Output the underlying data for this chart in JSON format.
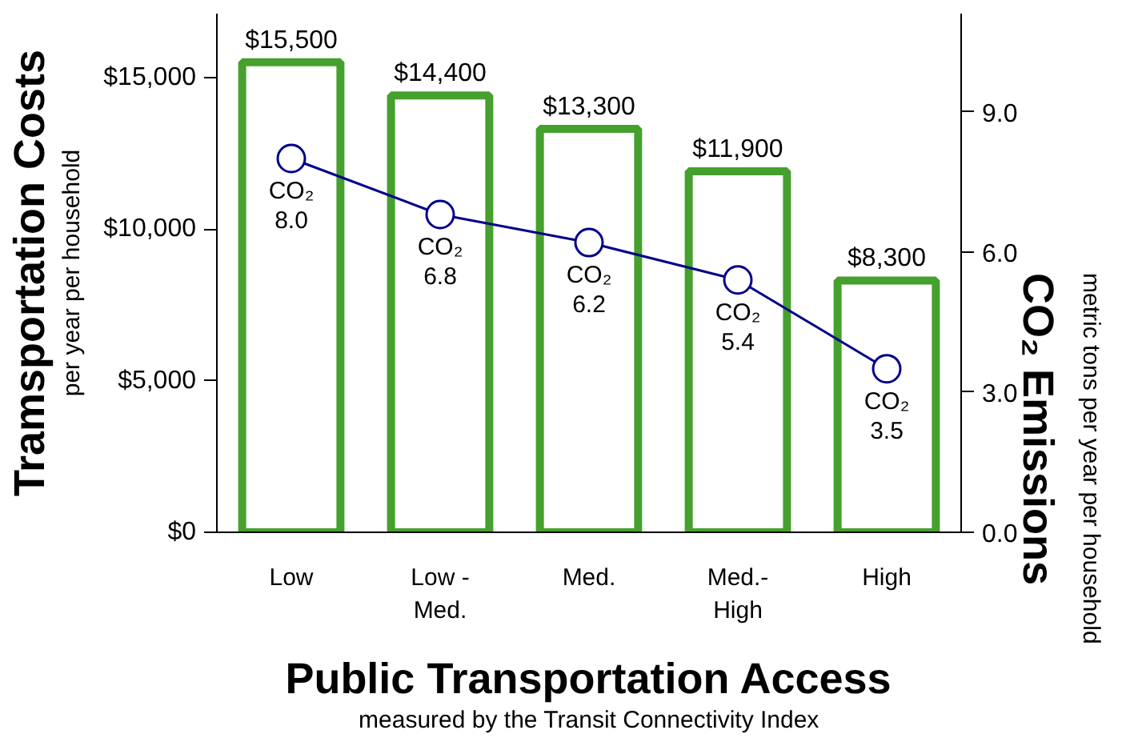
{
  "chart_data": {
    "type": "bar",
    "xlabel": "Public Transportation Access",
    "ylabel": "Tramsportation Costs",
    "y2label": "CO₂ Emissions",
    "annotations": [
      "per year per household",
      "metric tons per year per household",
      "measured by the Transit Connectivity Index"
    ],
    "categories": [
      "Low",
      "Low -\nMed.",
      "Med.",
      "Med.-\nHigh",
      "High"
    ],
    "series": [
      {
        "color": "#45a02e",
        "values": [
          15500,
          14400,
          13300,
          11900,
          8300
        ],
        "value_labels": [
          "$15,500",
          "$14,400",
          "$13,300",
          "$11,900",
          "$8,300"
        ]
      },
      {
        "type": "line",
        "axis": "y2",
        "color": "#00008b",
        "values": [
          8.0,
          6.8,
          6.2,
          5.4,
          3.5
        ],
        "value_labels": [
          "CO₂\n8.0",
          "CO₂\n6.8",
          "CO₂\n6.2",
          "CO₂\n5.4",
          "CO₂\n3.5"
        ],
        "marker": "circle"
      }
    ],
    "ylim": [
      0,
      17100
    ],
    "yticks": [
      {
        "value": 0,
        "label": "$0"
      },
      {
        "value": 5000,
        "label": "$5,000"
      },
      {
        "value": 10000,
        "label": "$10,000"
      },
      {
        "value": 15000,
        "label": "$15,000"
      }
    ],
    "y2lim": [
      0,
      11.1
    ],
    "y2ticks": [
      {
        "value": 0,
        "label": "0.0"
      },
      {
        "value": 3,
        "label": "3.0"
      },
      {
        "value": 6,
        "label": "6.0"
      },
      {
        "value": 9,
        "label": "9.0"
      }
    ],
    "grid": false
  }
}
